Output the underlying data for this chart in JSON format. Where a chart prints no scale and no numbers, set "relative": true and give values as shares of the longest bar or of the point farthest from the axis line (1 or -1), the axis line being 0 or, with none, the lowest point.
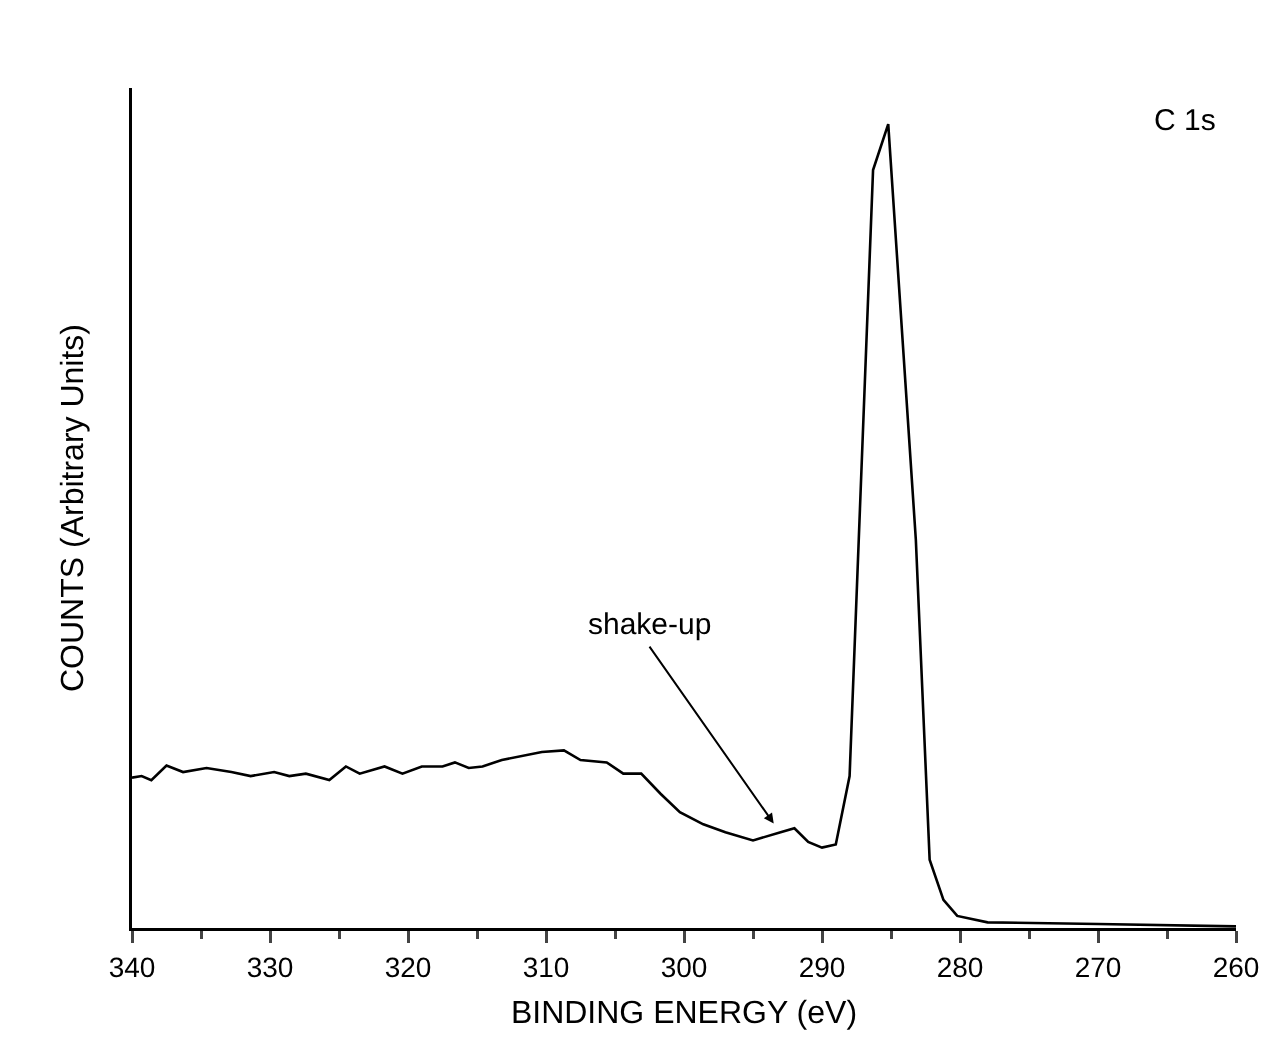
{
  "chart_data": {
    "type": "line",
    "relative": true,
    "xlabel": "BINDING ENERGY (eV)",
    "ylabel": "COUNTS (Arbitrary Units)",
    "xlim": [
      340,
      260
    ],
    "xticks": [
      340,
      330,
      320,
      310,
      300,
      290,
      280,
      270,
      260
    ],
    "grid": false,
    "marker": "none",
    "line_style": "solid",
    "x": [
      340,
      339.3,
      338.6,
      337.5,
      336.3,
      334.6,
      332.8,
      331.4,
      329.7,
      328.6,
      327.4,
      325.7,
      324.5,
      323.5,
      321.7,
      320.4,
      319,
      317.5,
      316.6,
      315.6,
      314.6,
      313.2,
      310.3,
      308.7,
      307.5,
      305.6,
      304.4,
      303.1,
      301.7,
      300.3,
      298.6,
      297,
      295,
      293,
      292,
      291,
      290,
      289,
      288,
      286.3,
      285.2,
      283.2,
      282.2,
      281.2,
      280.2,
      278,
      270,
      260
    ],
    "series": [
      {
        "color": "#000000",
        "values": [
          0.187,
          0.189,
          0.184,
          0.202,
          0.194,
          0.199,
          0.194,
          0.189,
          0.194,
          0.189,
          0.192,
          0.184,
          0.201,
          0.192,
          0.201,
          0.192,
          0.201,
          0.201,
          0.206,
          0.199,
          0.201,
          0.209,
          0.219,
          0.221,
          0.209,
          0.206,
          0.192,
          0.192,
          0.167,
          0.144,
          0.129,
          0.119,
          0.109,
          0.119,
          0.124,
          0.107,
          0.1,
          0.104,
          0.189,
          0.943,
          1,
          0.483,
          0.085,
          0.035,
          0.015,
          0.007,
          0.005,
          0.002
        ]
      }
    ],
    "annotations": [
      "C 1s",
      {
        "text": "shake-up",
        "x": 293.5,
        "y": 0.13
      }
    ]
  }
}
